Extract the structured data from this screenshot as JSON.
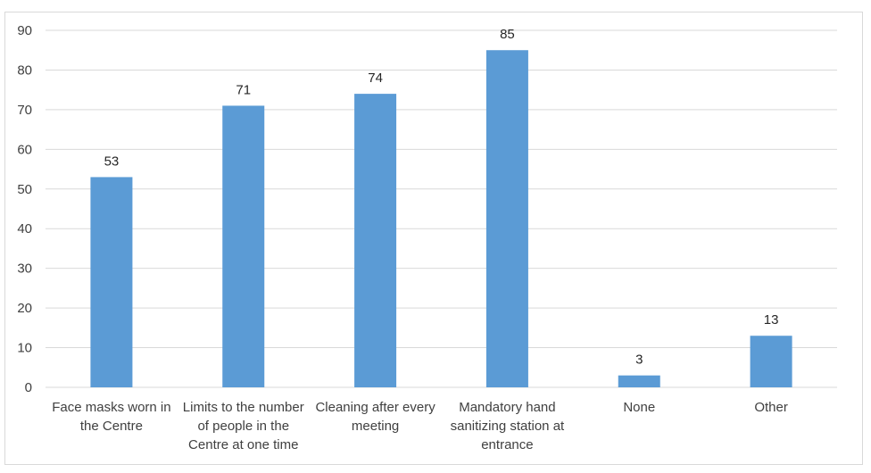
{
  "chart_data": {
    "type": "bar",
    "categories": [
      [
        "Face masks worn in",
        "the Centre"
      ],
      [
        "Limits to the number",
        "of people in the",
        "Centre at one time"
      ],
      [
        "Cleaning after every",
        "meeting"
      ],
      [
        "Mandatory hand",
        "sanitizing station at",
        "entrance"
      ],
      [
        "None"
      ],
      [
        "Other"
      ]
    ],
    "values": [
      53,
      71,
      74,
      85,
      3,
      13
    ],
    "ylim": [
      0,
      90
    ],
    "yticks": [
      0,
      10,
      20,
      30,
      40,
      50,
      60,
      70,
      80,
      90
    ],
    "grid": true,
    "bar_color": "#5b9bd5",
    "grid_color": "#d9d9d9",
    "title": "",
    "xlabel": "",
    "ylabel": ""
  }
}
